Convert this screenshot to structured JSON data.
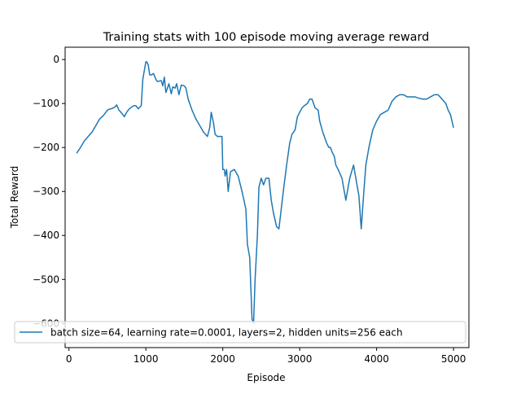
{
  "chart_data": {
    "type": "line",
    "title": "Training stats with 100 episode moving average reward",
    "xlabel": "Episode",
    "ylabel": "Total Reward",
    "xlim": [
      -50,
      5200
    ],
    "ylim": [
      -655,
      28
    ],
    "xticks": [
      0,
      1000,
      2000,
      3000,
      4000,
      5000
    ],
    "yticks": [
      0,
      -100,
      -200,
      -300,
      -400,
      -500,
      -600
    ],
    "grid": false,
    "legend_position": "lower-left",
    "series_color": "#1f77b4",
    "series": [
      {
        "name": "batch size=64, learning rate=0.0001, layers=2, hidden units=256 each",
        "x": [
          100,
          150,
          200,
          250,
          300,
          350,
          400,
          450,
          500,
          520,
          550,
          600,
          620,
          650,
          700,
          720,
          750,
          780,
          800,
          840,
          870,
          900,
          940,
          960,
          980,
          1000,
          1010,
          1030,
          1050,
          1070,
          1100,
          1130,
          1150,
          1200,
          1220,
          1240,
          1260,
          1300,
          1330,
          1350,
          1380,
          1400,
          1430,
          1460,
          1500,
          1520,
          1550,
          1600,
          1650,
          1700,
          1750,
          1800,
          1830,
          1850,
          1880,
          1900,
          1930,
          1960,
          1990,
          2000,
          2020,
          2030,
          2050,
          2070,
          2100,
          2150,
          2200,
          2250,
          2300,
          2320,
          2350,
          2380,
          2400,
          2420,
          2450,
          2470,
          2500,
          2530,
          2560,
          2600,
          2630,
          2660,
          2700,
          2730,
          2760,
          2790,
          2830,
          2870,
          2900,
          2940,
          2970,
          3000,
          3030,
          3060,
          3100,
          3130,
          3160,
          3200,
          3240,
          3260,
          3300,
          3330,
          3350,
          3380,
          3400,
          3420,
          3450,
          3470,
          3500,
          3550,
          3600,
          3650,
          3700,
          3730,
          3750,
          3770,
          3800,
          3830,
          3860,
          3900,
          3950,
          4000,
          4050,
          4100,
          4150,
          4200,
          4250,
          4300,
          4350,
          4400,
          4450,
          4500,
          4550,
          4600,
          4650,
          4700,
          4750,
          4800,
          4850,
          4900,
          4930,
          4960,
          5000
        ],
        "y": [
          -213,
          -200,
          -185,
          -175,
          -165,
          -150,
          -135,
          -127,
          -115,
          -113,
          -112,
          -108,
          -103,
          -115,
          -125,
          -130,
          -120,
          -113,
          -110,
          -105,
          -105,
          -112,
          -105,
          -45,
          -25,
          -5,
          -5,
          -12,
          -35,
          -35,
          -32,
          -45,
          -50,
          -48,
          -60,
          -40,
          -75,
          -55,
          -78,
          -62,
          -65,
          -55,
          -80,
          -58,
          -60,
          -65,
          -90,
          -115,
          -135,
          -150,
          -165,
          -175,
          -155,
          -120,
          -145,
          -170,
          -175,
          -175,
          -175,
          -250,
          -250,
          -265,
          -250,
          -300,
          -255,
          -250,
          -265,
          -300,
          -340,
          -420,
          -450,
          -590,
          -600,
          -500,
          -400,
          -290,
          -270,
          -285,
          -270,
          -270,
          -320,
          -350,
          -380,
          -385,
          -340,
          -295,
          -240,
          -190,
          -170,
          -160,
          -130,
          -120,
          -110,
          -105,
          -100,
          -90,
          -90,
          -110,
          -115,
          -140,
          -165,
          -180,
          -190,
          -200,
          -200,
          -210,
          -220,
          -240,
          -250,
          -270,
          -320,
          -270,
          -240,
          -270,
          -290,
          -310,
          -385,
          -310,
          -240,
          -200,
          -160,
          -140,
          -125,
          -120,
          -115,
          -95,
          -85,
          -80,
          -80,
          -85,
          -85,
          -85,
          -88,
          -90,
          -90,
          -85,
          -80,
          -80,
          -90,
          -100,
          -115,
          -125,
          -155
        ]
      }
    ]
  }
}
